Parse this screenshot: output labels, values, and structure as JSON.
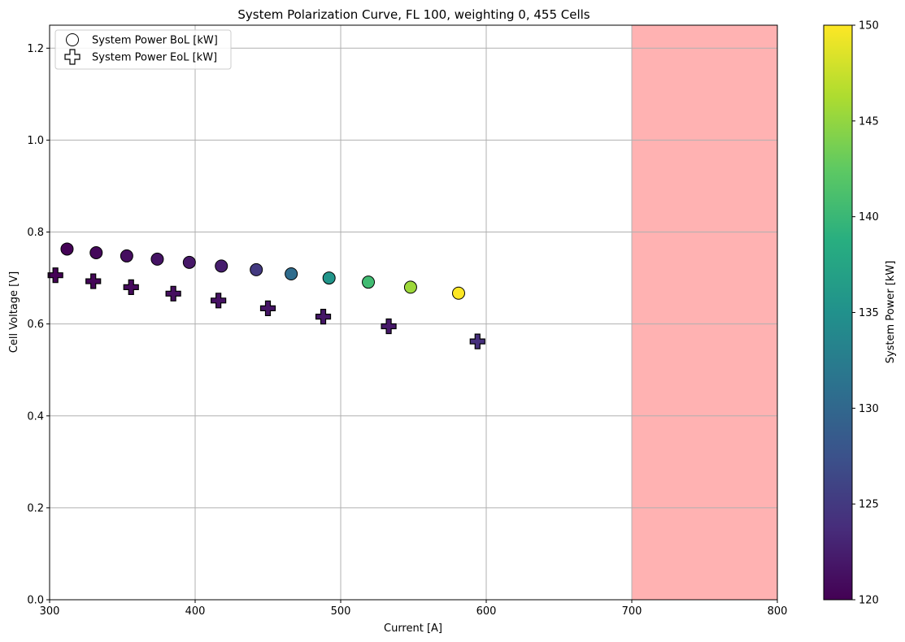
{
  "chart_data": {
    "type": "scatter",
    "title": "System Polarization Curve, FL 100, weighting 0, 455 Cells",
    "xlabel": "Current [A]",
    "ylabel": "Cell Voltage [V]",
    "xlim": [
      300,
      800
    ],
    "ylim": [
      0,
      1.25
    ],
    "x_ticks": [
      "300",
      "400",
      "500",
      "600",
      "700",
      "800"
    ],
    "y_ticks": [
      "0.0",
      "0.2",
      "0.4",
      "0.6",
      "0.8",
      "1.0",
      "1.2"
    ],
    "grid": true,
    "legend_position": "top-left",
    "shaded_region": {
      "x_from": 700,
      "x_to": 800,
      "color": "#ffb2b2"
    },
    "series": [
      {
        "name": "System Power BoL [kW]",
        "marker": "circle",
        "points": [
          {
            "x": 312,
            "y": 0.763,
            "power": 120.2
          },
          {
            "x": 332,
            "y": 0.755,
            "power": 120.6
          },
          {
            "x": 353,
            "y": 0.748,
            "power": 121.1
          },
          {
            "x": 374,
            "y": 0.741,
            "power": 121.5
          },
          {
            "x": 396,
            "y": 0.734,
            "power": 121.9
          },
          {
            "x": 418,
            "y": 0.726,
            "power": 122.4
          },
          {
            "x": 442,
            "y": 0.718,
            "power": 125.0
          },
          {
            "x": 466,
            "y": 0.709,
            "power": 130.5
          },
          {
            "x": 492,
            "y": 0.7,
            "power": 135.5
          },
          {
            "x": 519,
            "y": 0.691,
            "power": 140.5
          },
          {
            "x": 548,
            "y": 0.68,
            "power": 145.5
          },
          {
            "x": 581,
            "y": 0.667,
            "power": 150.0
          }
        ]
      },
      {
        "name": "System Power EoL [kW]",
        "marker": "plus",
        "points": [
          {
            "x": 304,
            "y": 0.706,
            "power": 120.1
          },
          {
            "x": 330,
            "y": 0.693,
            "power": 120.4
          },
          {
            "x": 356,
            "y": 0.68,
            "power": 120.8
          },
          {
            "x": 385,
            "y": 0.666,
            "power": 121.1
          },
          {
            "x": 416,
            "y": 0.651,
            "power": 121.4
          },
          {
            "x": 450,
            "y": 0.634,
            "power": 121.6
          },
          {
            "x": 488,
            "y": 0.616,
            "power": 121.8
          },
          {
            "x": 533,
            "y": 0.595,
            "power": 122.0
          },
          {
            "x": 594,
            "y": 0.562,
            "power": 124.0
          }
        ]
      }
    ],
    "colorbar": {
      "label": "System Power [kW]",
      "range": [
        120,
        150
      ],
      "ticks": [
        "120",
        "125",
        "130",
        "135",
        "140",
        "145",
        "150"
      ],
      "colormap": "viridis"
    }
  }
}
